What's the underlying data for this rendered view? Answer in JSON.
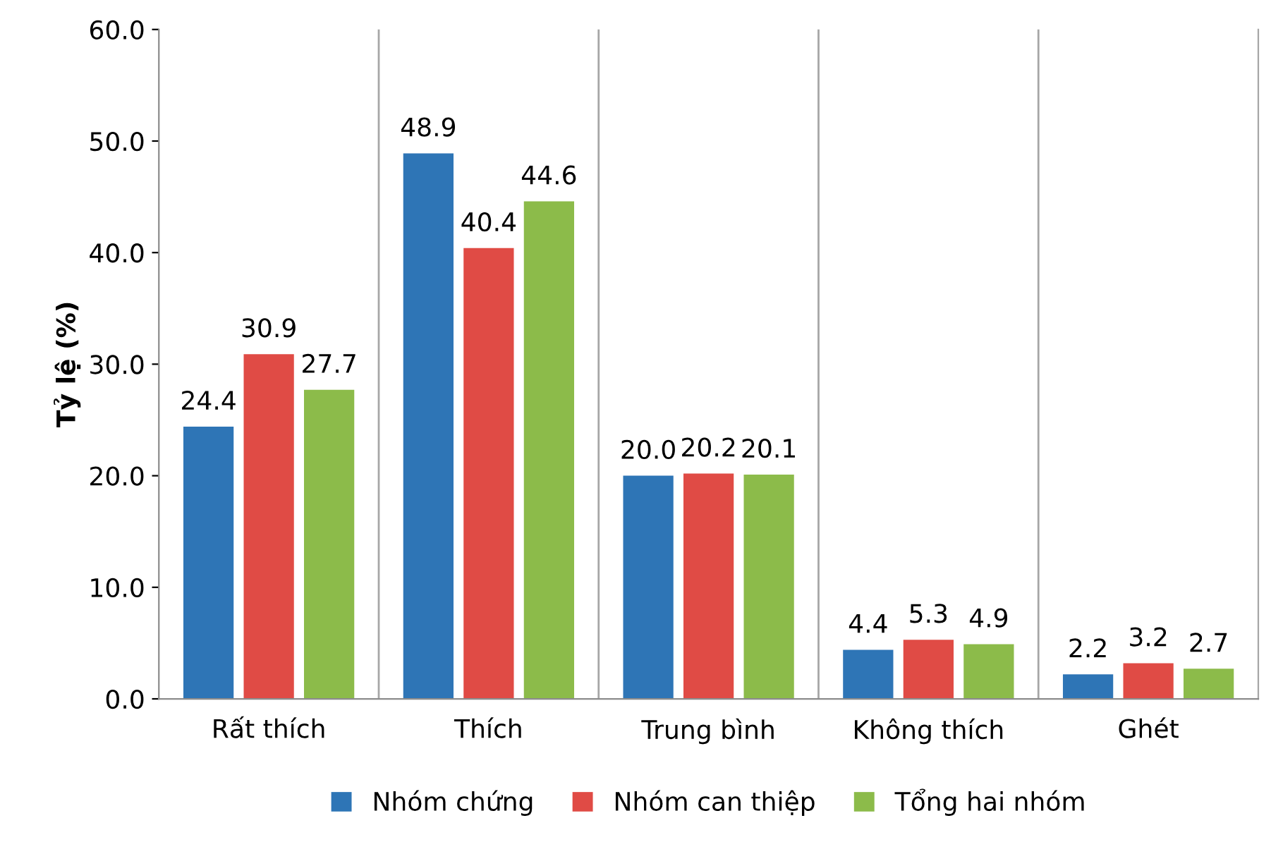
{
  "chart_data": {
    "type": "bar",
    "ylabel": "Tỷ lệ (%)",
    "categories": [
      "Rất thích",
      "Thích",
      "Trung bình",
      "Không thích",
      "Ghét"
    ],
    "series": [
      {
        "name": "Nhóm chứng",
        "color": "#2e75b6",
        "values": [
          24.4,
          48.9,
          20.0,
          4.4,
          2.2
        ],
        "value_labels": [
          "24.4",
          "48.9",
          "20.0",
          "4.4",
          "2.2"
        ]
      },
      {
        "name": "Nhóm can thiệp",
        "color": "#e04b45",
        "values": [
          30.9,
          40.4,
          20.2,
          5.3,
          3.2
        ],
        "value_labels": [
          "30.9",
          "40.4",
          "20.2",
          "5.3",
          "3.2"
        ]
      },
      {
        "name": "Tổng hai nhóm",
        "color": "#8cbb4a",
        "values": [
          27.7,
          44.6,
          20.1,
          4.9,
          2.7
        ],
        "value_labels": [
          "27.7",
          "44.6",
          "20.1",
          "4.9",
          "2.7"
        ]
      }
    ],
    "ylim": [
      0,
      60
    ],
    "yticks": [
      {
        "value": 0,
        "label": "0.0"
      },
      {
        "value": 10,
        "label": "10.0"
      },
      {
        "value": 20,
        "label": "20.0"
      },
      {
        "value": 30,
        "label": "30.0"
      },
      {
        "value": 40,
        "label": "40.0"
      },
      {
        "value": 50,
        "label": "50.0"
      },
      {
        "value": 60,
        "label": "60.0"
      }
    ],
    "grid": "x",
    "legend": "bottom"
  }
}
